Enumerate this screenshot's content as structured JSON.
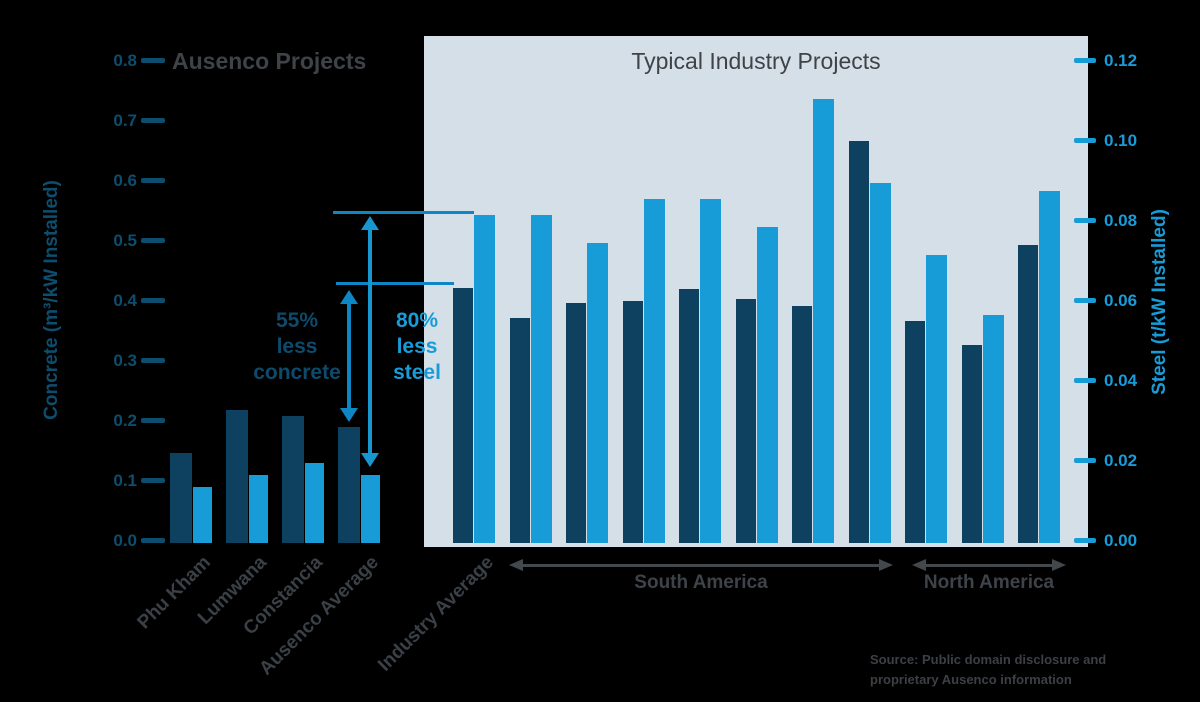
{
  "chart_data": {
    "type": "bar",
    "group_titles": [
      "Ausenco Projects",
      "Typical Industry Projects"
    ],
    "left_axis": {
      "title": "Concrete  (m³/kW Installed)",
      "range": [
        0,
        0.8
      ],
      "tick_labels": [
        "0.0",
        "0.1",
        "0.2",
        "0.3",
        "0.4",
        "0.5",
        "0.6",
        "0.7",
        "0.8"
      ],
      "color": "#0d4d6e"
    },
    "right_axis": {
      "title": "Steel  (t/kW Installed)",
      "range": [
        0,
        0.12
      ],
      "tick_labels": [
        "0.00",
        "0.02",
        "0.04",
        "0.06",
        "0.08",
        "0.10",
        "0.12"
      ],
      "color": "#189cd8"
    },
    "series": [
      {
        "name": "Concrete",
        "axis": "left",
        "color": "#0e4060"
      },
      {
        "name": "Steel",
        "axis": "right",
        "color": "#189cd8"
      }
    ],
    "grid": false,
    "legend": false,
    "ausenco_projects": [
      {
        "label": "Phu Kham",
        "concrete_m3_per_kW": 0.15,
        "steel_t_per_kW": 0.014
      },
      {
        "label": "Lumwana",
        "concrete_m3_per_kW": 0.222,
        "steel_t_per_kW": 0.017
      },
      {
        "label": "Constancia",
        "concrete_m3_per_kW": 0.211,
        "steel_t_per_kW": 0.02
      },
      {
        "label": "Ausenco Average",
        "concrete_m3_per_kW": 0.193,
        "steel_t_per_kW": 0.017
      }
    ],
    "industry_projects": [
      {
        "label": "Industry Average",
        "region": "",
        "concrete_m3_per_kW": 0.425,
        "steel_t_per_kW": 0.082
      },
      {
        "label": "",
        "region": "South America",
        "concrete_m3_per_kW": 0.375,
        "steel_t_per_kW": 0.082
      },
      {
        "label": "",
        "region": "South America",
        "concrete_m3_per_kW": 0.4,
        "steel_t_per_kW": 0.075
      },
      {
        "label": "",
        "region": "South America",
        "concrete_m3_per_kW": 0.403,
        "steel_t_per_kW": 0.086
      },
      {
        "label": "",
        "region": "South America",
        "concrete_m3_per_kW": 0.423,
        "steel_t_per_kW": 0.086
      },
      {
        "label": "",
        "region": "South America",
        "concrete_m3_per_kW": 0.406,
        "steel_t_per_kW": 0.079
      },
      {
        "label": "",
        "region": "South America",
        "concrete_m3_per_kW": 0.395,
        "steel_t_per_kW": 0.111
      },
      {
        "label": "",
        "region": "South America",
        "concrete_m3_per_kW": 0.67,
        "steel_t_per_kW": 0.09
      },
      {
        "label": "",
        "region": "North America",
        "concrete_m3_per_kW": 0.37,
        "steel_t_per_kW": 0.072
      },
      {
        "label": "",
        "region": "North America",
        "concrete_m3_per_kW": 0.33,
        "steel_t_per_kW": 0.057
      },
      {
        "label": "",
        "region": "North America",
        "concrete_m3_per_kW": 0.497,
        "steel_t_per_kW": 0.088
      }
    ],
    "regions": [
      {
        "label": "South America"
      },
      {
        "label": "North America"
      }
    ],
    "annotations": [
      {
        "text": "55%\nless\nconcrete",
        "color": "#0d4a6b"
      },
      {
        "text": "80%\nless\nsteel",
        "color": "#189cd8"
      }
    ]
  },
  "source_note": "Source: Public domain disclosure and\nproprietary Ausenco information",
  "colors": {
    "background": "#000000",
    "industry_panel": "#d4dfe8",
    "concrete_bar": "#0e4060",
    "steel_bar": "#189cd8",
    "title_text": "#3f4347",
    "region_arrow": "#43484d",
    "annotation_line": "#0e86c3"
  }
}
